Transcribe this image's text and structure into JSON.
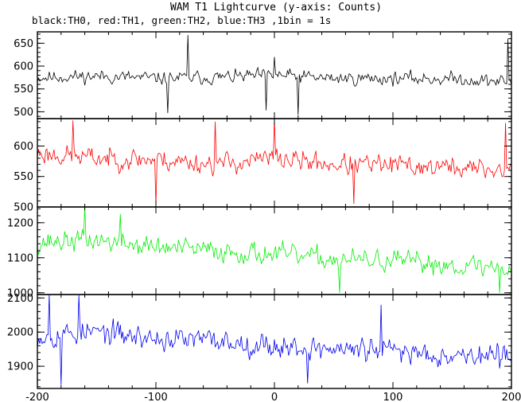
{
  "title": "WAM T1 Lightcurve (y-axis: Counts)",
  "subtitle": "black:TH0, red:TH1, green:TH2, blue:TH3 ,1bin = 1s",
  "chart_data": {
    "type": "line",
    "title": "WAM T1 Lightcurve (y-axis: Counts)",
    "subtitle": "black:TH0, red:TH1, green:TH2, blue:TH3 ,1bin = 1s",
    "ylabel": "Counts",
    "bin_seconds": 1,
    "xlim": [
      -200,
      200
    ],
    "xticks": [
      -200,
      -100,
      0,
      100,
      200
    ],
    "panels": [
      {
        "name": "TH0",
        "color": "#000000",
        "ylim": [
          485,
          675
        ],
        "yticks": [
          500,
          550,
          600,
          650
        ],
        "baseline": [
          [
            -200,
            575
          ],
          [
            -150,
            578
          ],
          [
            -100,
            573
          ],
          [
            -50,
            575
          ],
          [
            0,
            580
          ],
          [
            50,
            573
          ],
          [
            100,
            573
          ],
          [
            150,
            572
          ],
          [
            200,
            565
          ]
        ],
        "noise_amplitude": 20,
        "features": [
          {
            "x": -90,
            "y": 497
          },
          {
            "x": -73,
            "y": 668
          },
          {
            "x": -7,
            "y": 503
          },
          {
            "x": 0,
            "y": 620
          },
          {
            "x": 20,
            "y": 493
          },
          {
            "x": 197,
            "y": 660
          }
        ],
        "seed": 11
      },
      {
        "name": "TH1",
        "color": "#ff0000",
        "ylim": [
          500,
          645
        ],
        "yticks": [
          500,
          550,
          600
        ],
        "baseline": [
          [
            -200,
            588
          ],
          [
            -150,
            580
          ],
          [
            -100,
            578
          ],
          [
            -50,
            570
          ],
          [
            0,
            580
          ],
          [
            50,
            570
          ],
          [
            100,
            568
          ],
          [
            150,
            565
          ],
          [
            200,
            560
          ]
        ],
        "noise_amplitude": 24,
        "features": [
          {
            "x": -170,
            "y": 642
          },
          {
            "x": -50,
            "y": 640
          },
          {
            "x": 0,
            "y": 645
          },
          {
            "x": -100,
            "y": 502
          },
          {
            "x": 67,
            "y": 505
          },
          {
            "x": 195,
            "y": 638
          }
        ],
        "seed": 23
      },
      {
        "name": "TH2",
        "color": "#00ee00",
        "ylim": [
          995,
          1245
        ],
        "yticks": [
          1000,
          1100,
          1200
        ],
        "baseline": [
          [
            -200,
            1145
          ],
          [
            -150,
            1150
          ],
          [
            -100,
            1130
          ],
          [
            -50,
            1120
          ],
          [
            0,
            1110
          ],
          [
            50,
            1095
          ],
          [
            100,
            1090
          ],
          [
            150,
            1080
          ],
          [
            200,
            1070
          ]
        ],
        "noise_amplitude": 42,
        "features": [
          {
            "x": -160,
            "y": 1245
          },
          {
            "x": -130,
            "y": 1225
          },
          {
            "x": 55,
            "y": 1000
          },
          {
            "x": 190,
            "y": 1000
          }
        ],
        "seed": 37
      },
      {
        "name": "TH3",
        "color": "#0000ee",
        "ylim": [
          1835,
          2110
        ],
        "yticks": [
          1900,
          2000,
          2100
        ],
        "baseline": [
          [
            -200,
            1990
          ],
          [
            -150,
            2000
          ],
          [
            -100,
            1980
          ],
          [
            -50,
            1975
          ],
          [
            0,
            1960
          ],
          [
            50,
            1950
          ],
          [
            100,
            1945
          ],
          [
            150,
            1935
          ],
          [
            200,
            1925
          ]
        ],
        "noise_amplitude": 48,
        "features": [
          {
            "x": -190,
            "y": 2110
          },
          {
            "x": -165,
            "y": 2108
          },
          {
            "x": -180,
            "y": 1845
          },
          {
            "x": 28,
            "y": 1850
          },
          {
            "x": 90,
            "y": 2080
          }
        ],
        "seed": 53
      }
    ]
  }
}
